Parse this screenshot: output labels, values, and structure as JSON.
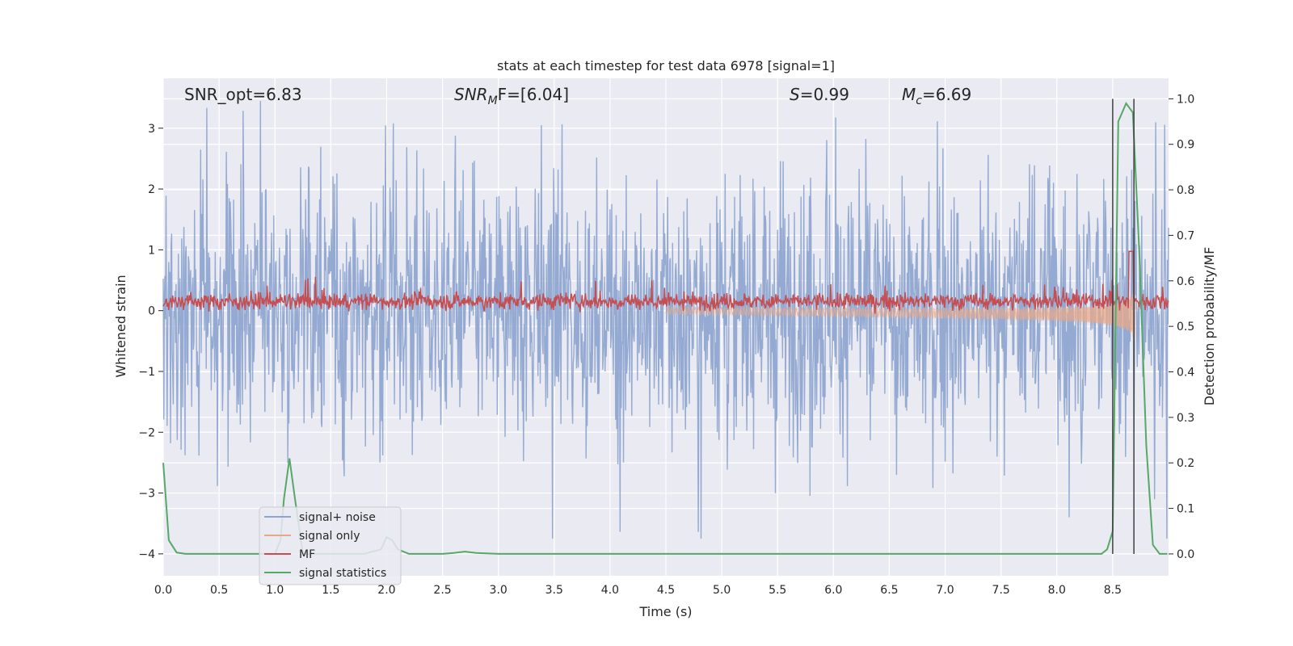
{
  "chart_data": {
    "type": "line",
    "title": "stats at each timestep for test data 6978 [signal=1]",
    "xlabel": "Time (s)",
    "ylabel": "Whitened strain",
    "ylabel_right": "Detection probability/MF",
    "xlim": [
      0.0,
      9.0
    ],
    "ylim": [
      -4.36,
      3.82
    ],
    "ylim_right": [
      -0.048,
      1.045
    ],
    "x_ticks": [
      "0.0",
      "0.5",
      "1.0",
      "1.5",
      "2.0",
      "2.5",
      "3.0",
      "3.5",
      "4.0",
      "4.5",
      "5.0",
      "5.5",
      "6.0",
      "6.5",
      "7.0",
      "7.5",
      "8.0",
      "8.5"
    ],
    "y_ticks": [
      "3",
      "2",
      "1",
      "0",
      "−1",
      "−2",
      "−3",
      "−4"
    ],
    "y_right_ticks": [
      "1.0",
      "0.9",
      "0.8",
      "0.7",
      "0.6",
      "0.5",
      "0.4",
      "0.3",
      "0.2",
      "0.1",
      "0.0"
    ],
    "annotations": {
      "snr_opt": "SNR_opt=6.83",
      "snr_mf_sym": "SNR",
      "snr_mf_sub": "M",
      "snr_mf_val": "F=[6.04]",
      "s_sym": "S",
      "s_val": "=0.99",
      "mc_sym": "M",
      "mc_sub": "c",
      "mc_val": "=6.69"
    },
    "vlines_x": [
      8.5,
      8.69
    ],
    "series": [
      {
        "name": "signal+ noise",
        "color": "#8fa6d0",
        "axis": "left",
        "description": "whitened noisy strain, roughly within ±3.5"
      },
      {
        "name": "signal only",
        "color": "#e8a888",
        "axis": "left",
        "description": "chirp waveform growing toward merger near 8.7 s"
      },
      {
        "name": "MF",
        "color": "#c44e52",
        "axis": "right",
        "description": "matched-filter output around 0.55, spike to 0.67 at 8.67 s"
      },
      {
        "name": "signal statistics",
        "color": "#55a868",
        "axis": "right",
        "x": [
          0.0,
          0.05,
          0.12,
          0.2,
          0.4,
          0.6,
          0.8,
          1.0,
          1.05,
          1.08,
          1.13,
          1.18,
          1.25,
          1.5,
          1.8,
          1.95,
          2.0,
          2.05,
          2.1,
          2.2,
          2.5,
          2.6,
          2.7,
          2.8,
          3.0,
          4.0,
          5.0,
          6.0,
          7.0,
          8.0,
          8.4,
          8.45,
          8.5,
          8.55,
          8.62,
          8.68,
          8.74,
          8.8,
          8.86,
          8.92,
          8.99
        ],
        "values": [
          0.2,
          0.03,
          0.003,
          0.0,
          0.0,
          0.0,
          0.0,
          0.0,
          0.03,
          0.12,
          0.21,
          0.12,
          0.0,
          0.0,
          0.0,
          0.01,
          0.037,
          0.03,
          0.01,
          0.0,
          0.0,
          0.002,
          0.005,
          0.002,
          0.0,
          0.0,
          0.0,
          0.0,
          0.0,
          0.0,
          0.0,
          0.01,
          0.05,
          0.95,
          0.99,
          0.97,
          0.65,
          0.24,
          0.02,
          0.0,
          0.0
        ]
      }
    ],
    "legend": {
      "placement": "lower-left",
      "entries": [
        {
          "label": "signal+ noise",
          "color": "#8fa6d0"
        },
        {
          "label": "signal only",
          "color": "#e8a888"
        },
        {
          "label": "MF",
          "color": "#c44e52"
        },
        {
          "label": "signal statistics",
          "color": "#55a868"
        }
      ]
    }
  }
}
